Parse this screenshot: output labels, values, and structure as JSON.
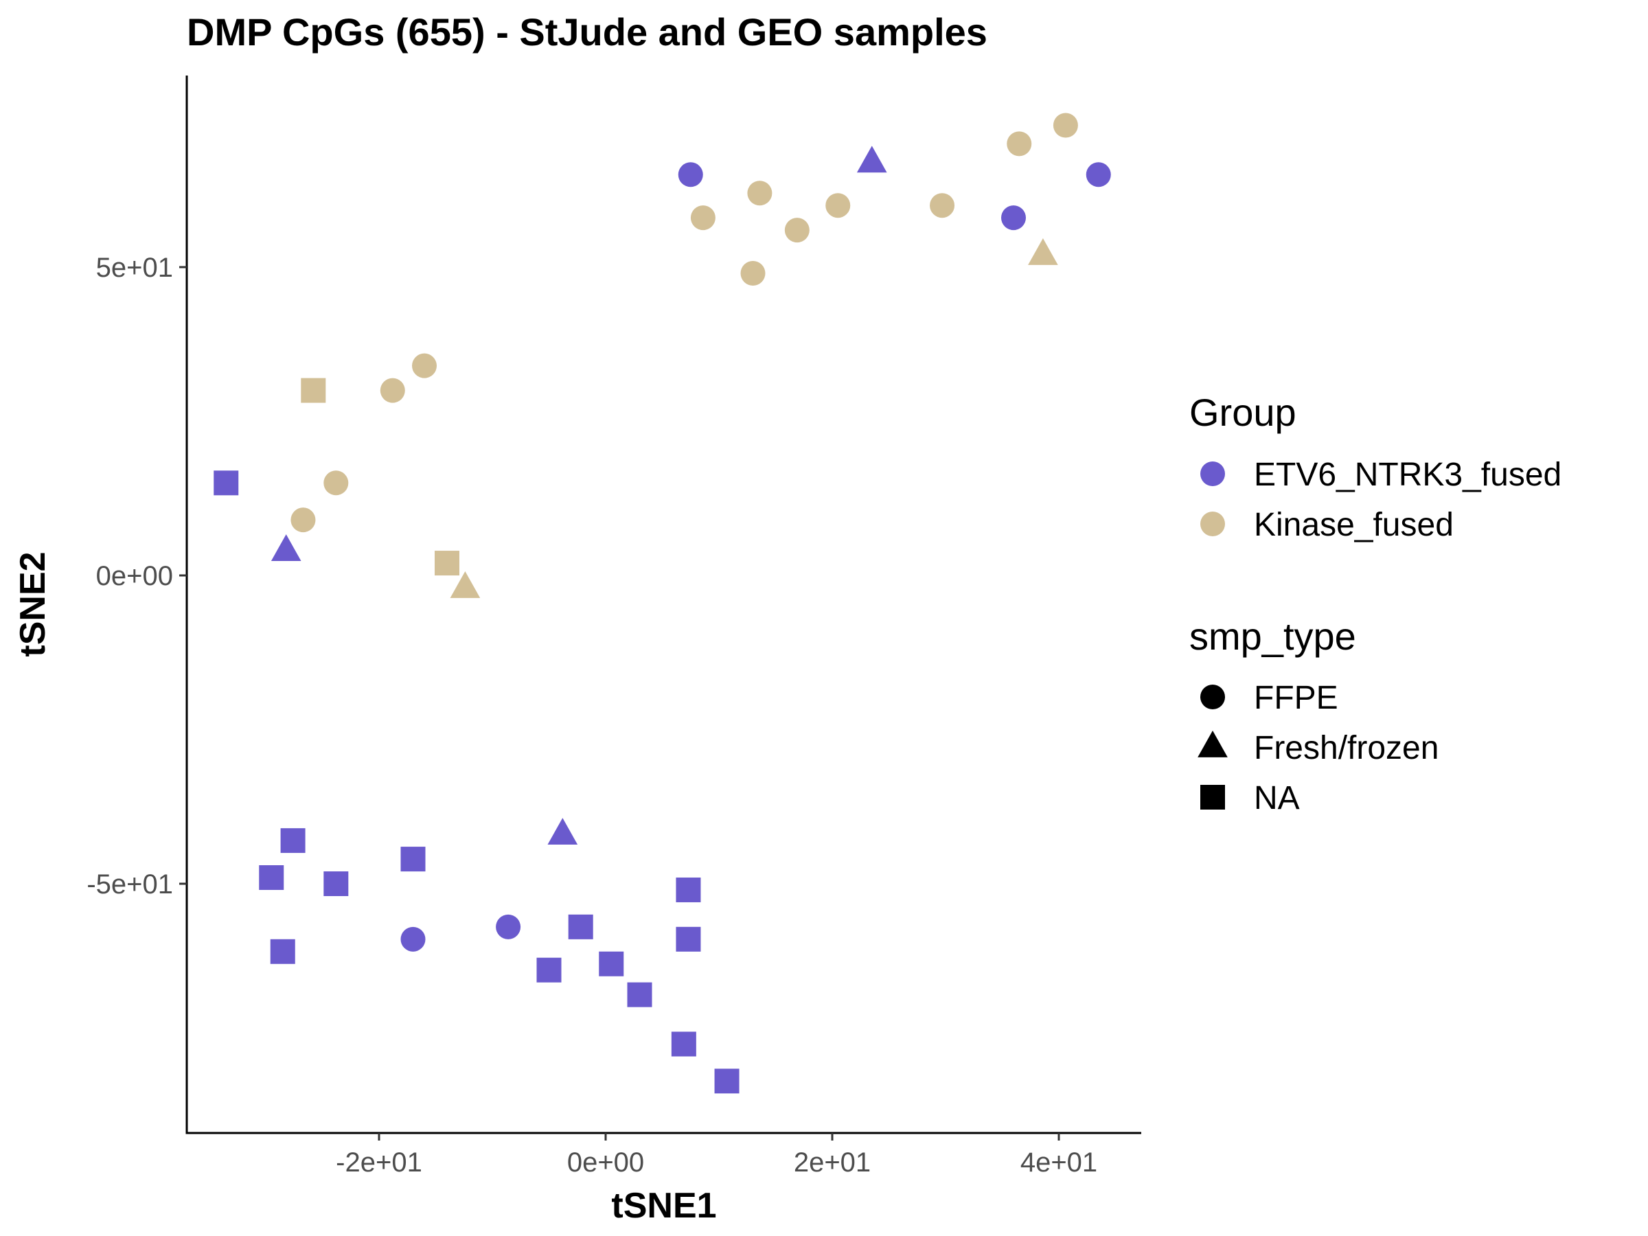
{
  "chart_data": {
    "type": "scatter",
    "title": "DMP CpGs (655) - StJude and GEO samples",
    "xlabel": "tSNE1",
    "ylabel": "tSNE2",
    "xlim": [
      -37,
      47
    ],
    "ylim": [
      -90,
      78
    ],
    "x_ticks": [
      {
        "value": -20,
        "label": "-2e+01"
      },
      {
        "value": 0,
        "label": "0e+00"
      },
      {
        "value": 20,
        "label": "2e+01"
      },
      {
        "value": 40,
        "label": "4e+01"
      }
    ],
    "y_ticks": [
      {
        "value": 50,
        "label": "5e+01"
      },
      {
        "value": 0,
        "label": "0e+00"
      },
      {
        "value": -50,
        "label": "-5e+01"
      }
    ],
    "grid": false,
    "legend_position": "right",
    "legends": {
      "color": {
        "title": "Group",
        "entries": [
          {
            "label": "ETV6_NTRK3_fused",
            "color": "#6a5acd"
          },
          {
            "label": "Kinase_fused",
            "color": "#d2bf96"
          }
        ]
      },
      "shape": {
        "title": "smp_type",
        "entries": [
          {
            "label": "FFPE",
            "shape": "circle"
          },
          {
            "label": "Fresh/frozen",
            "shape": "triangle"
          },
          {
            "label": "NA",
            "shape": "square"
          }
        ]
      }
    },
    "points": [
      {
        "x": 7.5,
        "y": 65,
        "group": "ETV6_NTRK3_fused",
        "smp_type": "FFPE"
      },
      {
        "x": 23.5,
        "y": 67,
        "group": "ETV6_NTRK3_fused",
        "smp_type": "Fresh/frozen"
      },
      {
        "x": 36,
        "y": 58,
        "group": "ETV6_NTRK3_fused",
        "smp_type": "FFPE"
      },
      {
        "x": 43.5,
        "y": 65,
        "group": "ETV6_NTRK3_fused",
        "smp_type": "FFPE"
      },
      {
        "x": 8.6,
        "y": 58,
        "group": "Kinase_fused",
        "smp_type": "FFPE"
      },
      {
        "x": 13.6,
        "y": 62,
        "group": "Kinase_fused",
        "smp_type": "FFPE"
      },
      {
        "x": 16.9,
        "y": 56,
        "group": "Kinase_fused",
        "smp_type": "FFPE"
      },
      {
        "x": 20.5,
        "y": 60,
        "group": "Kinase_fused",
        "smp_type": "FFPE"
      },
      {
        "x": 13,
        "y": 49,
        "group": "Kinase_fused",
        "smp_type": "FFPE"
      },
      {
        "x": 29.7,
        "y": 60,
        "group": "Kinase_fused",
        "smp_type": "FFPE"
      },
      {
        "x": 36.5,
        "y": 70,
        "group": "Kinase_fused",
        "smp_type": "FFPE"
      },
      {
        "x": 40.6,
        "y": 73,
        "group": "Kinase_fused",
        "smp_type": "FFPE"
      },
      {
        "x": 38.6,
        "y": 52,
        "group": "Kinase_fused",
        "smp_type": "Fresh/frozen"
      },
      {
        "x": -25.8,
        "y": 30,
        "group": "Kinase_fused",
        "smp_type": "NA"
      },
      {
        "x": -18.8,
        "y": 30,
        "group": "Kinase_fused",
        "smp_type": "FFPE"
      },
      {
        "x": -16,
        "y": 34,
        "group": "Kinase_fused",
        "smp_type": "FFPE"
      },
      {
        "x": -23.8,
        "y": 15,
        "group": "Kinase_fused",
        "smp_type": "FFPE"
      },
      {
        "x": -26.7,
        "y": 9,
        "group": "Kinase_fused",
        "smp_type": "FFPE"
      },
      {
        "x": -14,
        "y": 2,
        "group": "Kinase_fused",
        "smp_type": "NA"
      },
      {
        "x": -12.4,
        "y": -2,
        "group": "Kinase_fused",
        "smp_type": "Fresh/frozen"
      },
      {
        "x": -33.5,
        "y": 15,
        "group": "ETV6_NTRK3_fused",
        "smp_type": "NA"
      },
      {
        "x": -28.2,
        "y": 4,
        "group": "ETV6_NTRK3_fused",
        "smp_type": "Fresh/frozen"
      },
      {
        "x": -27.6,
        "y": -43,
        "group": "ETV6_NTRK3_fused",
        "smp_type": "NA"
      },
      {
        "x": -29.5,
        "y": -49,
        "group": "ETV6_NTRK3_fused",
        "smp_type": "NA"
      },
      {
        "x": -23.8,
        "y": -50,
        "group": "ETV6_NTRK3_fused",
        "smp_type": "NA"
      },
      {
        "x": -17,
        "y": -46,
        "group": "ETV6_NTRK3_fused",
        "smp_type": "NA"
      },
      {
        "x": -28.5,
        "y": -61,
        "group": "ETV6_NTRK3_fused",
        "smp_type": "NA"
      },
      {
        "x": -17,
        "y": -59,
        "group": "ETV6_NTRK3_fused",
        "smp_type": "FFPE"
      },
      {
        "x": -8.6,
        "y": -57,
        "group": "ETV6_NTRK3_fused",
        "smp_type": "FFPE"
      },
      {
        "x": -3.8,
        "y": -42,
        "group": "ETV6_NTRK3_fused",
        "smp_type": "Fresh/frozen"
      },
      {
        "x": -2.2,
        "y": -57,
        "group": "ETV6_NTRK3_fused",
        "smp_type": "NA"
      },
      {
        "x": -5,
        "y": -64,
        "group": "ETV6_NTRK3_fused",
        "smp_type": "NA"
      },
      {
        "x": 0.5,
        "y": -63,
        "group": "ETV6_NTRK3_fused",
        "smp_type": "NA"
      },
      {
        "x": 3,
        "y": -68,
        "group": "ETV6_NTRK3_fused",
        "smp_type": "NA"
      },
      {
        "x": 7.3,
        "y": -51,
        "group": "ETV6_NTRK3_fused",
        "smp_type": "NA"
      },
      {
        "x": 7.3,
        "y": -59,
        "group": "ETV6_NTRK3_fused",
        "smp_type": "NA"
      },
      {
        "x": 6.9,
        "y": -76,
        "group": "ETV6_NTRK3_fused",
        "smp_type": "NA"
      },
      {
        "x": 10.7,
        "y": -82,
        "group": "ETV6_NTRK3_fused",
        "smp_type": "NA"
      }
    ]
  }
}
